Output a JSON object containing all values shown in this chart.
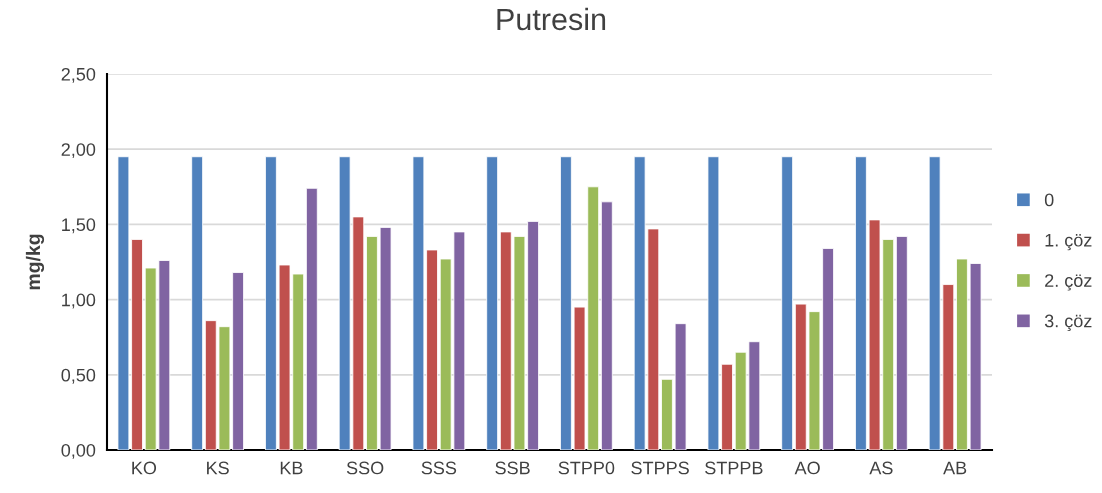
{
  "chart_data": {
    "type": "bar",
    "title": "Putresin",
    "ylabel": "mg/kg",
    "categories": [
      "KO",
      "KS",
      "KB",
      "SSO",
      "SSS",
      "SSB",
      "STPP0",
      "STPPS",
      "STPPB",
      "AO",
      "AS",
      "AB"
    ],
    "series": [
      {
        "name": "0",
        "color": "#4f81bd",
        "values": [
          1.95,
          1.95,
          1.95,
          1.95,
          1.95,
          1.95,
          1.95,
          1.95,
          1.95,
          1.95,
          1.95,
          1.95
        ]
      },
      {
        "name": "1. çöz",
        "color": "#c0504d",
        "values": [
          1.4,
          0.86,
          1.23,
          1.55,
          1.33,
          1.45,
          0.95,
          1.47,
          0.57,
          0.97,
          1.53,
          1.1
        ]
      },
      {
        "name": "2. çöz",
        "color": "#9bbb59",
        "values": [
          1.21,
          0.82,
          1.17,
          1.42,
          1.27,
          1.42,
          1.75,
          0.47,
          0.65,
          0.92,
          1.4,
          1.27
        ]
      },
      {
        "name": "3. çöz",
        "color": "#8064a2",
        "values": [
          1.26,
          1.18,
          1.74,
          1.48,
          1.45,
          1.52,
          1.65,
          0.84,
          0.72,
          1.34,
          1.42,
          1.24
        ]
      }
    ],
    "ylim": [
      0,
      2.5
    ],
    "yticks": [
      {
        "value": 0,
        "label": "0,00"
      },
      {
        "value": 0.5,
        "label": "0,50"
      },
      {
        "value": 1,
        "label": "1,00"
      },
      {
        "value": 1.5,
        "label": "1,50"
      },
      {
        "value": 2,
        "label": "2,00"
      },
      {
        "value": 2.5,
        "label": "2,50"
      }
    ],
    "grid": "y",
    "legend": "right"
  }
}
